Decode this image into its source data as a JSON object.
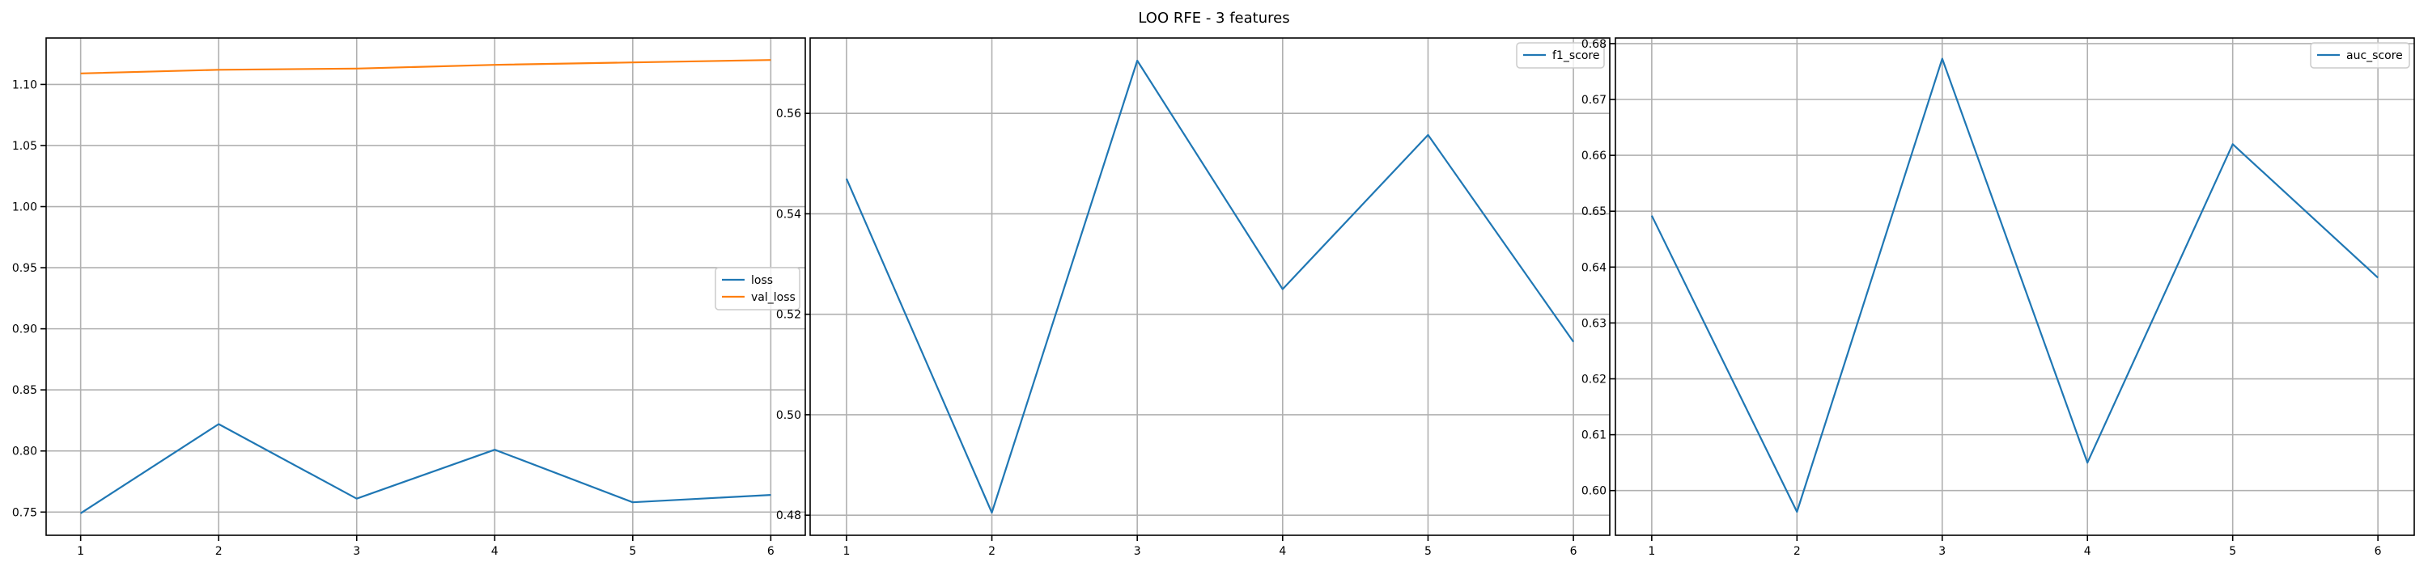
{
  "figure": {
    "title": "LOO RFE - 3 features"
  },
  "chart_data": [
    {
      "type": "line",
      "x": [
        1,
        2,
        3,
        4,
        5,
        6
      ],
      "series": [
        {
          "name": "loss",
          "color": "#1f77b4",
          "values": [
            0.749,
            0.822,
            0.761,
            0.801,
            0.758,
            0.764
          ]
        },
        {
          "name": "val_loss",
          "color": "#ff7f0e",
          "values": [
            1.109,
            1.112,
            1.113,
            1.116,
            1.118,
            1.12
          ]
        }
      ],
      "xticks": [
        1,
        2,
        3,
        4,
        5,
        6
      ],
      "yticks": [
        0.75,
        0.8,
        0.85,
        0.9,
        0.95,
        1.0,
        1.05,
        1.1
      ],
      "ytick_labels": [
        "0.75",
        "0.80",
        "0.85",
        "0.90",
        "0.95",
        "1.00",
        "1.05",
        "1.10"
      ],
      "xlim": [
        0.75,
        6.25
      ],
      "ylim": [
        0.731,
        1.138
      ],
      "grid": true,
      "legend_position": "center-right"
    },
    {
      "type": "line",
      "x": [
        1,
        2,
        3,
        4,
        5,
        6
      ],
      "series": [
        {
          "name": "f1_score",
          "color": "#1f77b4",
          "values": [
            0.547,
            0.4805,
            0.5705,
            0.525,
            0.5557,
            0.5145
          ]
        }
      ],
      "xticks": [
        1,
        2,
        3,
        4,
        5,
        6
      ],
      "yticks": [
        0.48,
        0.5,
        0.52,
        0.54,
        0.56
      ],
      "ytick_labels": [
        "0.48",
        "0.50",
        "0.52",
        "0.54",
        "0.56"
      ],
      "xlim": [
        0.75,
        6.25
      ],
      "ylim": [
        0.476,
        0.575
      ],
      "grid": true,
      "legend_position": "top-right"
    },
    {
      "type": "line",
      "x": [
        1,
        2,
        3,
        4,
        5,
        6
      ],
      "series": [
        {
          "name": "auc_score",
          "color": "#1f77b4",
          "values": [
            0.6492,
            0.5962,
            0.6773,
            0.605,
            0.662,
            0.6381
          ]
        }
      ],
      "xticks": [
        1,
        2,
        3,
        4,
        5,
        6
      ],
      "yticks": [
        0.6,
        0.61,
        0.62,
        0.63,
        0.64,
        0.65,
        0.66,
        0.67,
        0.68
      ],
      "ytick_labels": [
        "0.60",
        "0.61",
        "0.62",
        "0.63",
        "0.64",
        "0.65",
        "0.66",
        "0.67",
        "0.68"
      ],
      "xlim": [
        0.75,
        6.25
      ],
      "ylim": [
        0.592,
        0.681
      ],
      "grid": true,
      "legend_position": "top-right"
    }
  ]
}
